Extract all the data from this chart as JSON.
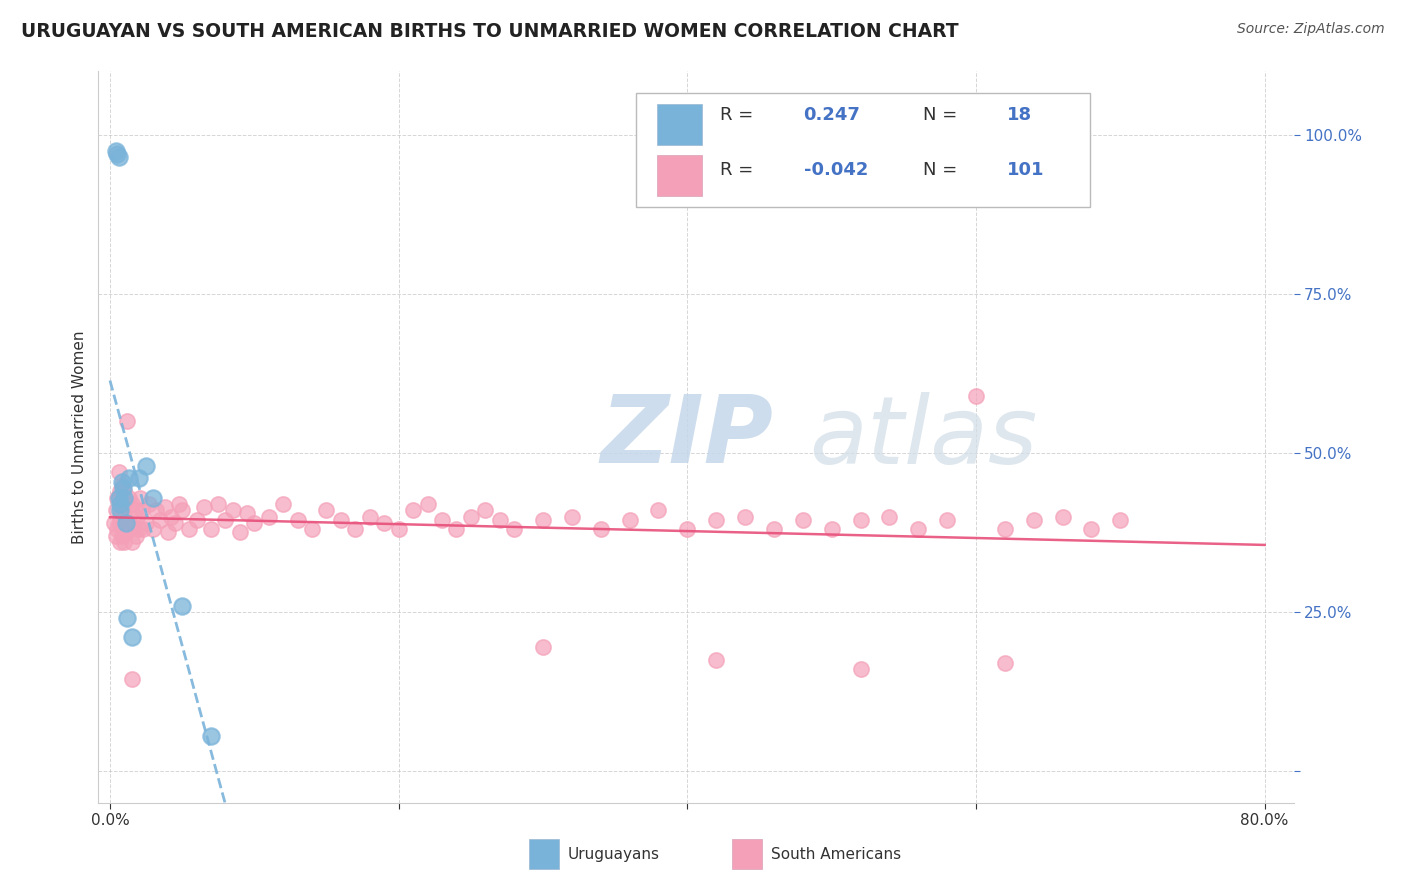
{
  "title": "URUGUAYAN VS SOUTH AMERICAN BIRTHS TO UNMARRIED WOMEN CORRELATION CHART",
  "source": "Source: ZipAtlas.com",
  "ylabel": "Births to Unmarried Women",
  "xlim": [
    -0.008,
    0.82
  ],
  "ylim": [
    -0.05,
    1.1
  ],
  "xtick_vals": [
    0.0,
    0.2,
    0.4,
    0.6,
    0.8
  ],
  "xticklabels": [
    "0.0%",
    "",
    "",
    "",
    "80.0%"
  ],
  "ytick_vals": [
    0.0,
    0.25,
    0.5,
    0.75,
    1.0
  ],
  "yticklabels": [
    "",
    "25.0%",
    "50.0%",
    "75.0%",
    "100.0%"
  ],
  "blue_color": "#7ab3d9",
  "pink_color": "#f4a0b8",
  "pink_line_color": "#e8507a",
  "stat_color": "#4472c4",
  "legend_R1": "0.247",
  "legend_N1": "18",
  "legend_R2": "-0.042",
  "legend_N2": "101",
  "blue_x": [
    0.004,
    0.005,
    0.006,
    0.006,
    0.007,
    0.007,
    0.008,
    0.009,
    0.01,
    0.011,
    0.012,
    0.013,
    0.015,
    0.02,
    0.025,
    0.03,
    0.05,
    0.07
  ],
  "blue_y": [
    0.975,
    0.97,
    0.965,
    0.43,
    0.42,
    0.41,
    0.455,
    0.445,
    0.43,
    0.39,
    0.24,
    0.46,
    0.21,
    0.46,
    0.48,
    0.43,
    0.26,
    0.055
  ],
  "pink_x": [
    0.003,
    0.004,
    0.004,
    0.005,
    0.005,
    0.006,
    0.006,
    0.006,
    0.007,
    0.007,
    0.007,
    0.008,
    0.008,
    0.008,
    0.009,
    0.009,
    0.01,
    0.01,
    0.01,
    0.011,
    0.011,
    0.012,
    0.012,
    0.013,
    0.013,
    0.014,
    0.015,
    0.015,
    0.016,
    0.017,
    0.018,
    0.019,
    0.02,
    0.021,
    0.022,
    0.023,
    0.025,
    0.027,
    0.03,
    0.032,
    0.035,
    0.038,
    0.04,
    0.042,
    0.045,
    0.048,
    0.05,
    0.055,
    0.06,
    0.065,
    0.07,
    0.075,
    0.08,
    0.085,
    0.09,
    0.095,
    0.1,
    0.11,
    0.12,
    0.13,
    0.14,
    0.15,
    0.16,
    0.17,
    0.18,
    0.19,
    0.2,
    0.21,
    0.22,
    0.23,
    0.24,
    0.25,
    0.26,
    0.27,
    0.28,
    0.3,
    0.32,
    0.34,
    0.36,
    0.38,
    0.4,
    0.42,
    0.44,
    0.46,
    0.48,
    0.5,
    0.52,
    0.54,
    0.56,
    0.58,
    0.6,
    0.62,
    0.64,
    0.66,
    0.68,
    0.7,
    0.62,
    0.3,
    0.42,
    0.52,
    0.015
  ],
  "pink_y": [
    0.39,
    0.41,
    0.37,
    0.38,
    0.43,
    0.39,
    0.43,
    0.47,
    0.36,
    0.4,
    0.44,
    0.37,
    0.41,
    0.45,
    0.38,
    0.42,
    0.36,
    0.4,
    0.44,
    0.375,
    0.42,
    0.38,
    0.55,
    0.39,
    0.43,
    0.38,
    0.36,
    0.42,
    0.385,
    0.41,
    0.37,
    0.4,
    0.38,
    0.43,
    0.41,
    0.38,
    0.39,
    0.42,
    0.38,
    0.41,
    0.395,
    0.415,
    0.375,
    0.4,
    0.39,
    0.42,
    0.41,
    0.38,
    0.395,
    0.415,
    0.38,
    0.42,
    0.395,
    0.41,
    0.375,
    0.405,
    0.39,
    0.4,
    0.42,
    0.395,
    0.38,
    0.41,
    0.395,
    0.38,
    0.4,
    0.39,
    0.38,
    0.41,
    0.42,
    0.395,
    0.38,
    0.4,
    0.41,
    0.395,
    0.38,
    0.395,
    0.4,
    0.38,
    0.395,
    0.41,
    0.38,
    0.395,
    0.4,
    0.38,
    0.395,
    0.38,
    0.395,
    0.4,
    0.38,
    0.395,
    0.59,
    0.38,
    0.395,
    0.4,
    0.38,
    0.395,
    0.17,
    0.195,
    0.175,
    0.16,
    0.145
  ]
}
